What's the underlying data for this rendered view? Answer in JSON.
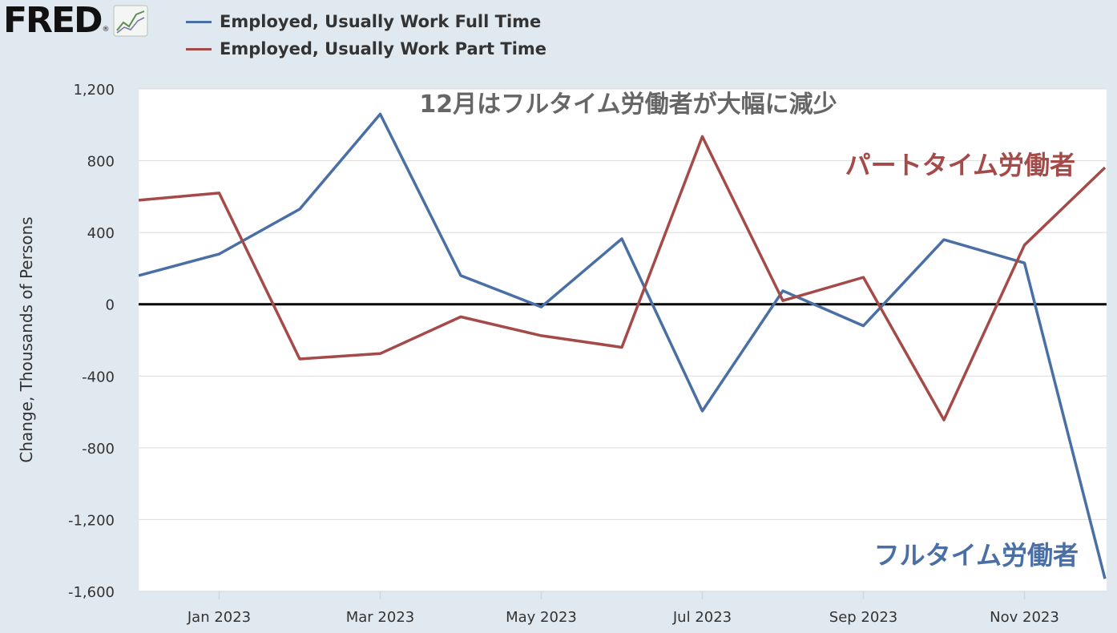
{
  "logo": {
    "text": "FRED",
    "reg": "®",
    "icon": "line-chart-icon"
  },
  "legend": [
    {
      "label": "Employed, Usually Work Full Time",
      "color": "#4a6fa5"
    },
    {
      "label": "Employed, Usually Work Part Time",
      "color": "#a44a48"
    }
  ],
  "annotations": {
    "title": "12月はフルタイム労働者が大幅に減少",
    "part_time": "パートタイム労働者",
    "full_time": "フルタイム労働者"
  },
  "chart_data": {
    "type": "line",
    "ylabel": "Change, Thousands of Persons",
    "ylim": [
      -1600,
      1200
    ],
    "yticks": [
      1200,
      800,
      400,
      0,
      -400,
      -800,
      -1200,
      -1600
    ],
    "ytick_labels": [
      "1,200",
      "800",
      "400",
      "0",
      "-400",
      "-800",
      "-1,200",
      "-1,600"
    ],
    "x": [
      "2022-12",
      "2023-01",
      "2023-02",
      "2023-03",
      "2023-04",
      "2023-05",
      "2023-06",
      "2023-07",
      "2023-08",
      "2023-09",
      "2023-10",
      "2023-11",
      "2023-12"
    ],
    "xtick_labels": [
      "Jan 2023",
      "Mar 2023",
      "May 2023",
      "Jul 2023",
      "Sep 2023",
      "Nov 2023"
    ],
    "xtick_months": [
      1,
      3,
      5,
      7,
      9,
      11
    ],
    "zero_line": true,
    "grid": true,
    "series": [
      {
        "name": "Employed, Usually Work Full Time",
        "color": "#4a6fa5",
        "values": [
          160,
          280,
          530,
          1060,
          160,
          -15,
          365,
          -595,
          75,
          -120,
          360,
          230,
          -1530
        ]
      },
      {
        "name": "Employed, Usually Work Part Time",
        "color": "#a44a48",
        "values": [
          580,
          620,
          -305,
          -275,
          -70,
          -175,
          -240,
          935,
          20,
          150,
          -645,
          330,
          762
        ]
      }
    ]
  }
}
